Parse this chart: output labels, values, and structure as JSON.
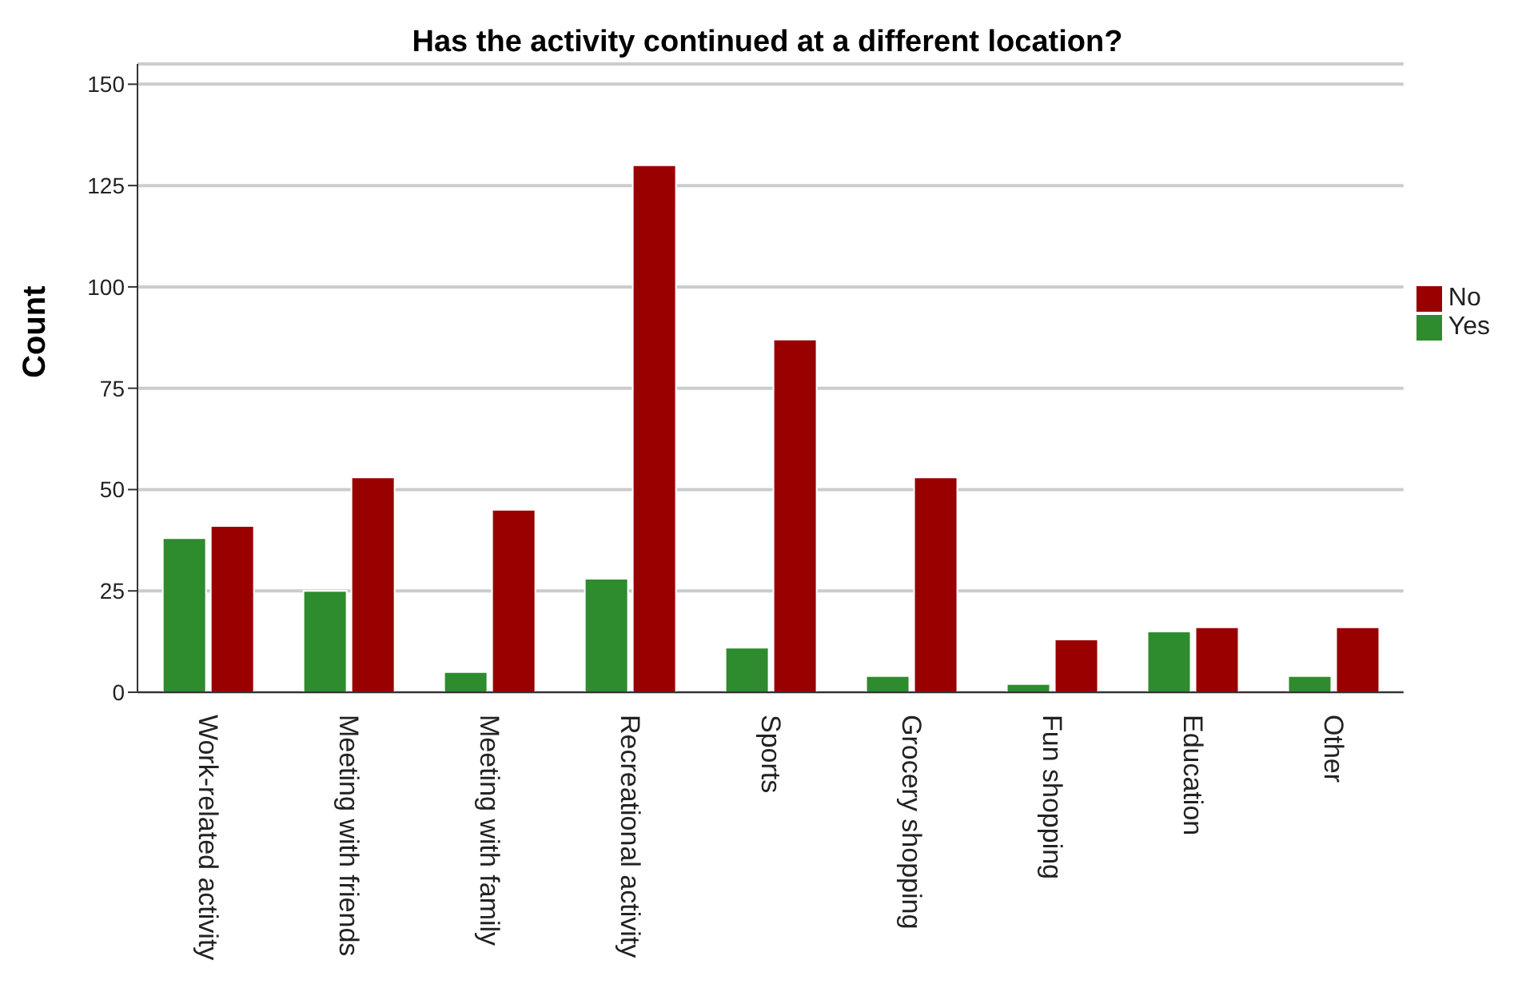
{
  "chart_data": {
    "type": "bar",
    "title": "Has the activity continued at a different location?",
    "ylabel": "Count",
    "categories": [
      "Work-related activity",
      "Meeting with friends",
      "Meeting with family",
      "Recreational activity",
      "Sports",
      "Grocery shopping",
      "Fun shopping",
      "Education",
      "Other"
    ],
    "series": [
      {
        "name": "Yes",
        "color": "#2e8b2e",
        "values": [
          38,
          25,
          5,
          28,
          11,
          4,
          2,
          15,
          4
        ]
      },
      {
        "name": "No",
        "color": "#990000",
        "values": [
          41,
          53,
          45,
          130,
          87,
          53,
          13,
          16,
          16
        ]
      }
    ],
    "ylim": [
      0,
      155
    ],
    "yticks": [
      0,
      25,
      50,
      75,
      100,
      125,
      150
    ],
    "grid": "y",
    "legend": "right"
  }
}
